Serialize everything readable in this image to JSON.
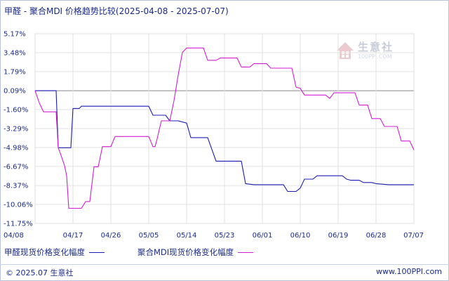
{
  "title": "甲醛 - 聚合MDI 价格趋势比较(2025-04-08 - 2025-07-07)",
  "watermark": {
    "name": "生意社",
    "url": "100PPI.COM"
  },
  "footer": {
    "copyright": "© 2025.07 生意社",
    "url": "www.100PPI.com"
  },
  "colors": {
    "series1": "#1c1cb4",
    "series2": "#d21ed2",
    "zero_line": "#888888",
    "grid": "#e2e2e2"
  },
  "chart_data": {
    "type": "line",
    "title": "甲醛 - 聚合MDI 价格趋势比较(2025-04-08 - 2025-07-07)",
    "xlabel": "",
    "ylabel": "",
    "ylim": [
      -11.75,
      5.17
    ],
    "x_range": [
      "2025-04-08",
      "2025-07-07"
    ],
    "yticks": [
      "5.17%",
      "3.48%",
      "1.79%",
      "0.09%",
      "-1.60%",
      "-3.29%",
      "-4.98%",
      "-6.67%",
      "-8.37%",
      "-10.06%",
      "-11.75%"
    ],
    "ytick_values": [
      5.17,
      3.48,
      1.79,
      0.09,
      -1.6,
      -3.29,
      -4.98,
      -6.67,
      -8.37,
      -10.06,
      -11.75
    ],
    "xticks": [
      "04/08",
      "04/17",
      "04/26",
      "05/05",
      "05/14",
      "05/23",
      "06/01",
      "06/10",
      "06/19",
      "06/28",
      "07/07"
    ],
    "xtick_days": [
      0,
      9,
      18,
      27,
      36,
      45,
      54,
      63,
      72,
      81,
      90
    ],
    "grid": true,
    "legend_position": "bottom",
    "series": [
      {
        "name": "甲醛现货价格变化幅度",
        "points": [
          [
            0,
            0.09
          ],
          [
            5,
            0.09
          ],
          [
            5.5,
            -5.0
          ],
          [
            8.5,
            -5.0
          ],
          [
            9,
            -1.5
          ],
          [
            10.5,
            -1.5
          ],
          [
            11,
            -1.3
          ],
          [
            27,
            -1.3
          ],
          [
            28,
            -2.1
          ],
          [
            31,
            -2.1
          ],
          [
            32,
            -2.6
          ],
          [
            34,
            -2.6
          ],
          [
            36,
            -2.8
          ],
          [
            37,
            -4.1
          ],
          [
            41,
            -4.1
          ],
          [
            43,
            -6.2
          ],
          [
            49,
            -6.2
          ],
          [
            50,
            -8.2
          ],
          [
            52,
            -8.3
          ],
          [
            59,
            -8.3
          ],
          [
            60,
            -8.9
          ],
          [
            62,
            -8.9
          ],
          [
            63,
            -8.6
          ],
          [
            64,
            -7.8
          ],
          [
            66,
            -7.8
          ],
          [
            67,
            -7.5
          ],
          [
            73,
            -7.5
          ],
          [
            74,
            -7.8
          ],
          [
            75,
            -7.9
          ],
          [
            77,
            -7.9
          ],
          [
            78,
            -8.1
          ],
          [
            80,
            -8.1
          ],
          [
            81,
            -8.2
          ],
          [
            84,
            -8.3
          ],
          [
            90,
            -8.3
          ]
        ]
      },
      {
        "name": "聚合MDI现货价格变化幅度",
        "points": [
          [
            0,
            0.09
          ],
          [
            1,
            -1.0
          ],
          [
            2,
            -1.8
          ],
          [
            5,
            -1.8
          ],
          [
            5.5,
            -5.0
          ],
          [
            6,
            -5.5
          ],
          [
            7,
            -6.6
          ],
          [
            7.5,
            -7.5
          ],
          [
            8,
            -10.4
          ],
          [
            11,
            -10.4
          ],
          [
            12,
            -9.8
          ],
          [
            13,
            -9.8
          ],
          [
            14,
            -6.7
          ],
          [
            15,
            -6.7
          ],
          [
            16,
            -4.9
          ],
          [
            18,
            -4.9
          ],
          [
            19,
            -4.0
          ],
          [
            27,
            -4.0
          ],
          [
            28,
            -4.9
          ],
          [
            28.5,
            -4.9
          ],
          [
            29,
            -4.2
          ],
          [
            30,
            -2.6
          ],
          [
            32,
            -2.6
          ],
          [
            33,
            -0.8
          ],
          [
            34,
            1.5
          ],
          [
            35,
            3.5
          ],
          [
            36,
            3.9
          ],
          [
            40,
            3.9
          ],
          [
            41,
            2.8
          ],
          [
            43,
            2.8
          ],
          [
            44,
            3.0
          ],
          [
            48,
            3.0
          ],
          [
            49,
            2.2
          ],
          [
            51,
            2.2
          ],
          [
            52,
            2.5
          ],
          [
            55,
            2.5
          ],
          [
            56,
            2.1
          ],
          [
            61,
            2.1
          ],
          [
            62,
            0.4
          ],
          [
            63,
            0.3
          ],
          [
            64,
            -0.3
          ],
          [
            69,
            -0.3
          ],
          [
            70,
            -0.6
          ],
          [
            71,
            -0.1
          ],
          [
            76,
            -0.1
          ],
          [
            77,
            -1.2
          ],
          [
            79,
            -1.2
          ],
          [
            80,
            -2.4
          ],
          [
            82,
            -2.4
          ],
          [
            83,
            -3.1
          ],
          [
            86,
            -3.1
          ],
          [
            87,
            -4.4
          ],
          [
            89,
            -4.4
          ],
          [
            90,
            -5.2
          ]
        ]
      }
    ]
  }
}
